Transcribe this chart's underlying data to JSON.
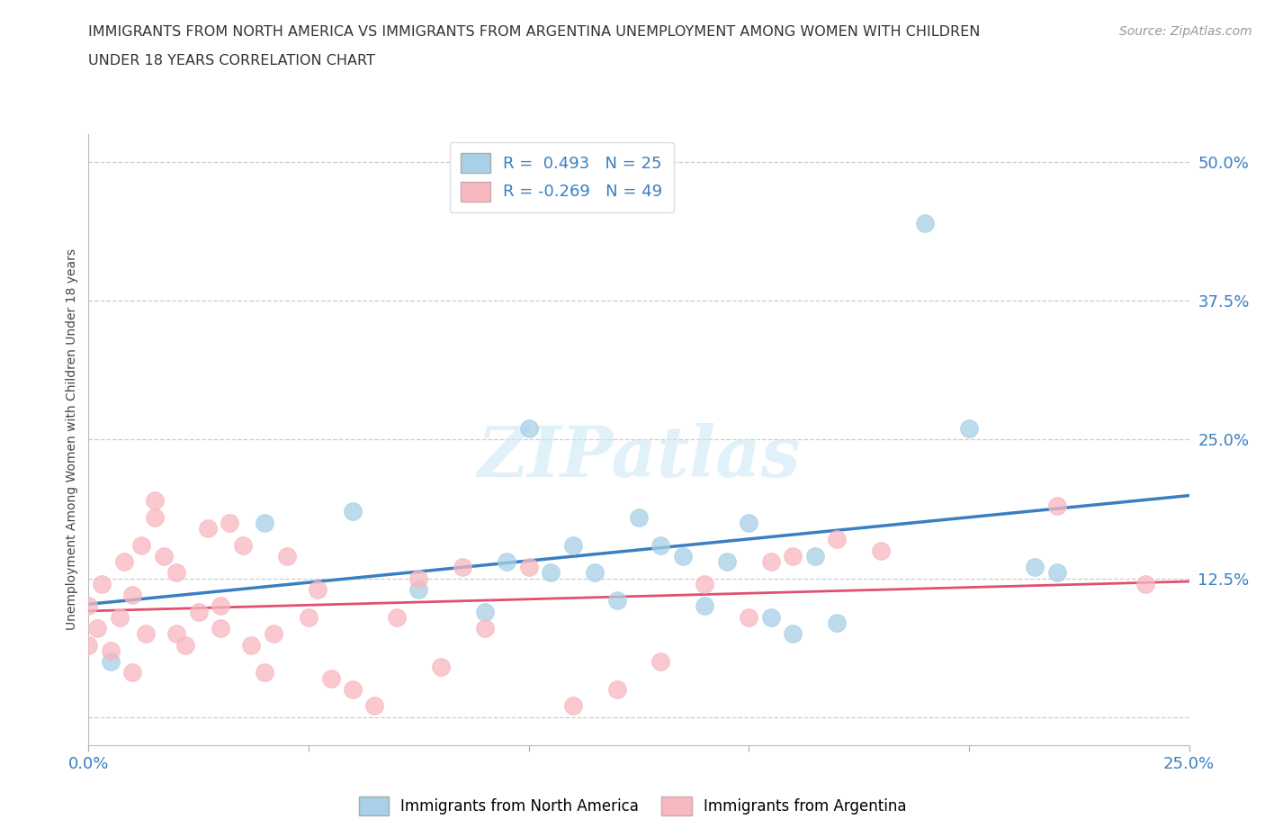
{
  "title_line1": "IMMIGRANTS FROM NORTH AMERICA VS IMMIGRANTS FROM ARGENTINA UNEMPLOYMENT AMONG WOMEN WITH CHILDREN",
  "title_line2": "UNDER 18 YEARS CORRELATION CHART",
  "source": "Source: ZipAtlas.com",
  "ylabel": "Unemployment Among Women with Children Under 18 years",
  "xlim": [
    0.0,
    0.25
  ],
  "ylim": [
    -0.02,
    0.52
  ],
  "ylim_display": [
    0.0,
    0.5
  ],
  "xticks": [
    0.0,
    0.05,
    0.1,
    0.15,
    0.2,
    0.25
  ],
  "yticks": [
    0.0,
    0.125,
    0.25,
    0.375,
    0.5
  ],
  "R_north_america": 0.493,
  "N_north_america": 25,
  "R_argentina": -0.269,
  "N_argentina": 49,
  "color_north_america": "#a8d0e8",
  "color_argentina": "#f7b8c0",
  "line_color_north_america": "#3a7fc1",
  "line_color_argentina": "#e05070",
  "watermark": "ZIPatlas",
  "north_america_x": [
    0.005,
    0.04,
    0.06,
    0.075,
    0.09,
    0.095,
    0.1,
    0.105,
    0.11,
    0.115,
    0.12,
    0.125,
    0.13,
    0.135,
    0.14,
    0.145,
    0.15,
    0.155,
    0.16,
    0.165,
    0.17,
    0.19,
    0.2,
    0.215,
    0.22
  ],
  "north_america_y": [
    0.05,
    0.175,
    0.185,
    0.115,
    0.095,
    0.14,
    0.26,
    0.13,
    0.155,
    0.13,
    0.105,
    0.18,
    0.155,
    0.145,
    0.1,
    0.14,
    0.175,
    0.09,
    0.075,
    0.145,
    0.085,
    0.445,
    0.26,
    0.135,
    0.13
  ],
  "argentina_x": [
    0.0,
    0.0,
    0.002,
    0.003,
    0.005,
    0.007,
    0.008,
    0.01,
    0.01,
    0.012,
    0.013,
    0.015,
    0.015,
    0.017,
    0.02,
    0.02,
    0.022,
    0.025,
    0.027,
    0.03,
    0.03,
    0.032,
    0.035,
    0.037,
    0.04,
    0.042,
    0.045,
    0.05,
    0.052,
    0.055,
    0.06,
    0.065,
    0.07,
    0.075,
    0.08,
    0.085,
    0.09,
    0.1,
    0.11,
    0.12,
    0.13,
    0.14,
    0.15,
    0.155,
    0.16,
    0.17,
    0.18,
    0.22,
    0.24
  ],
  "argentina_y": [
    0.065,
    0.1,
    0.08,
    0.12,
    0.06,
    0.09,
    0.14,
    0.04,
    0.11,
    0.155,
    0.075,
    0.18,
    0.195,
    0.145,
    0.075,
    0.13,
    0.065,
    0.095,
    0.17,
    0.08,
    0.1,
    0.175,
    0.155,
    0.065,
    0.04,
    0.075,
    0.145,
    0.09,
    0.115,
    0.035,
    0.025,
    0.01,
    0.09,
    0.125,
    0.045,
    0.135,
    0.08,
    0.135,
    0.01,
    0.025,
    0.05,
    0.12,
    0.09,
    0.14,
    0.145,
    0.16,
    0.15,
    0.19,
    0.12
  ]
}
